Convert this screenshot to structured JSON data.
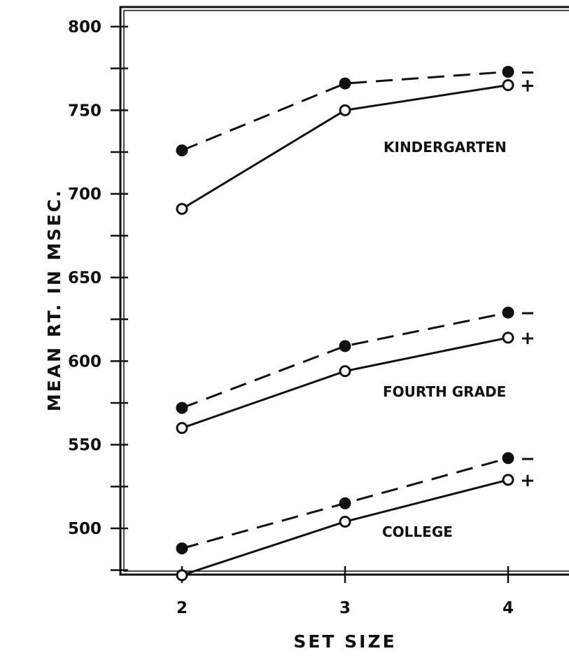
{
  "chart_data": {
    "type": "line",
    "xlabel": "SET SIZE",
    "ylabel": "MEAN RT. IN MSEC.",
    "x": [
      2,
      3,
      4
    ],
    "xlim": [
      1.6,
      4.4
    ],
    "ylim": [
      465,
      805
    ],
    "yticks": [
      500,
      550,
      600,
      650,
      700,
      750,
      800
    ],
    "yminor": [
      475,
      525,
      575,
      625,
      675,
      725,
      775
    ],
    "grid": false,
    "groups": [
      {
        "label": "KINDERGARTEN",
        "series": [
          {
            "name": "−",
            "marker": "filled",
            "dash": true,
            "values": [
              726,
              766,
              773
            ]
          },
          {
            "name": "+",
            "marker": "open",
            "dash": false,
            "values": [
              691,
              750,
              765
            ]
          }
        ]
      },
      {
        "label": "FOURTH GRADE",
        "series": [
          {
            "name": "−",
            "marker": "filled",
            "dash": true,
            "values": [
              572,
              609,
              629
            ]
          },
          {
            "name": "+",
            "marker": "open",
            "dash": false,
            "values": [
              560,
              594,
              614
            ]
          }
        ]
      },
      {
        "label": "COLLEGE",
        "series": [
          {
            "name": "−",
            "marker": "filled",
            "dash": true,
            "values": [
              488,
              515,
              542
            ]
          },
          {
            "name": "+",
            "marker": "open",
            "dash": false,
            "values": [
              472,
              504,
              529
            ]
          }
        ]
      }
    ]
  }
}
